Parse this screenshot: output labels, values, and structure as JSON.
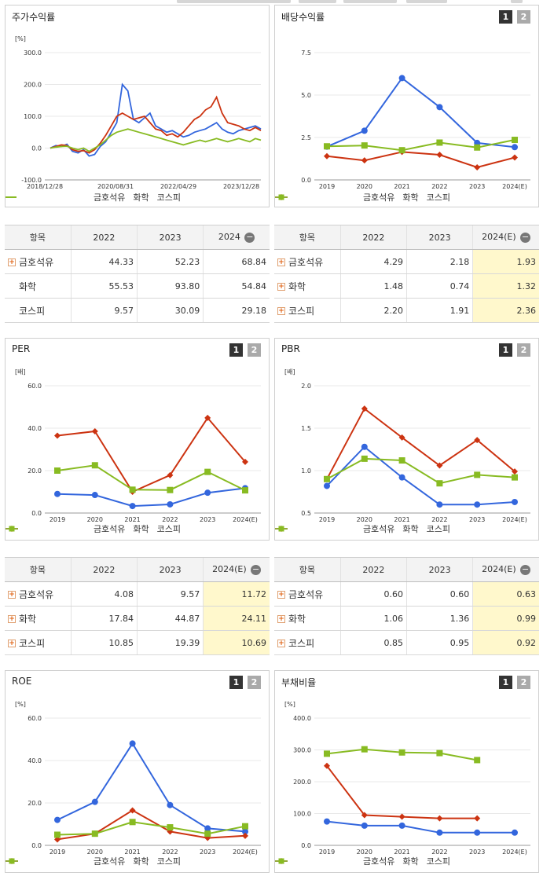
{
  "colors": {
    "s1": "#3366dd",
    "s2": "#cc3311",
    "s3": "#88bb22"
  },
  "series_names": [
    "금호석유",
    "화학",
    "코스피"
  ],
  "table_header": {
    "item": "항목"
  },
  "panels": {
    "stock": {
      "title": "주가수익률",
      "unit": "[%]"
    },
    "div": {
      "title": "배당수익률",
      "btn1": "1",
      "btn2": "2"
    },
    "per": {
      "title": "PER",
      "unit": "[배]",
      "btn1": "1",
      "btn2": "2"
    },
    "pbr": {
      "title": "PBR",
      "unit": "[배]",
      "btn1": "1",
      "btn2": "2"
    },
    "roe": {
      "title": "ROE",
      "unit": "[%]",
      "btn1": "1",
      "btn2": "2"
    },
    "debt": {
      "title": "부채비율",
      "unit": "[%]",
      "btn1": "1",
      "btn2": "2"
    }
  },
  "tables": {
    "stock": {
      "cols": [
        "2022",
        "2023",
        "2024"
      ],
      "rows": [
        {
          "name": "금호석유",
          "plus": true,
          "vals": [
            "44.33",
            "52.23",
            "68.84"
          ]
        },
        {
          "name": "화학",
          "plus": false,
          "vals": [
            "55.53",
            "93.80",
            "54.84"
          ]
        },
        {
          "name": "코스피",
          "plus": false,
          "vals": [
            "9.57",
            "30.09",
            "29.18"
          ]
        }
      ]
    },
    "div": {
      "cols": [
        "2022",
        "2023",
        "2024(E)"
      ],
      "rows": [
        {
          "name": "금호석유",
          "plus": true,
          "vals": [
            "4.29",
            "2.18",
            "1.93"
          ]
        },
        {
          "name": "화학",
          "plus": true,
          "vals": [
            "1.48",
            "0.74",
            "1.32"
          ]
        },
        {
          "name": "코스피",
          "plus": true,
          "vals": [
            "2.20",
            "1.91",
            "2.36"
          ]
        }
      ]
    },
    "per": {
      "cols": [
        "2022",
        "2023",
        "2024(E)"
      ],
      "rows": [
        {
          "name": "금호석유",
          "plus": true,
          "vals": [
            "4.08",
            "9.57",
            "11.72"
          ]
        },
        {
          "name": "화학",
          "plus": true,
          "vals": [
            "17.84",
            "44.87",
            "24.11"
          ]
        },
        {
          "name": "코스피",
          "plus": true,
          "vals": [
            "10.85",
            "19.39",
            "10.69"
          ]
        }
      ]
    },
    "pbr": {
      "cols": [
        "2022",
        "2023",
        "2024(E)"
      ],
      "rows": [
        {
          "name": "금호석유",
          "plus": true,
          "vals": [
            "0.60",
            "0.60",
            "0.63"
          ]
        },
        {
          "name": "화학",
          "plus": true,
          "vals": [
            "1.06",
            "1.36",
            "0.99"
          ]
        },
        {
          "name": "코스피",
          "plus": true,
          "vals": [
            "0.85",
            "0.95",
            "0.92"
          ]
        }
      ]
    }
  },
  "chart_data": [
    {
      "id": "stock",
      "type": "line",
      "ylabel": "[%]",
      "yticks": [
        "300.0",
        "200.0",
        "100.0",
        "0.0",
        "-100.0"
      ],
      "ylim": [
        -100,
        300
      ],
      "xticks": [
        "2018/12/28",
        "2020/08/31",
        "2022/04/29",
        "2023/12/28"
      ],
      "series": [
        {
          "name": "금호석유",
          "values": [
            0,
            8,
            5,
            12,
            -10,
            -15,
            -5,
            -25,
            -20,
            5,
            20,
            50,
            80,
            200,
            180,
            90,
            80,
            95,
            110,
            70,
            60,
            50,
            55,
            45,
            35,
            40,
            50,
            55,
            60,
            70,
            80,
            60,
            50,
            45,
            55,
            60,
            65,
            70,
            60
          ]
        },
        {
          "name": "화학",
          "values": [
            0,
            5,
            10,
            8,
            -5,
            -10,
            -8,
            -15,
            -5,
            15,
            40,
            70,
            100,
            110,
            100,
            90,
            95,
            100,
            80,
            60,
            55,
            40,
            45,
            35,
            50,
            70,
            90,
            100,
            120,
            130,
            160,
            110,
            80,
            75,
            70,
            60,
            55,
            65,
            55
          ]
        },
        {
          "name": "코스피",
          "values": [
            0,
            3,
            5,
            6,
            0,
            -5,
            0,
            -10,
            0,
            10,
            25,
            40,
            50,
            55,
            60,
            55,
            50,
            45,
            40,
            35,
            30,
            25,
            20,
            15,
            10,
            15,
            20,
            25,
            20,
            25,
            30,
            25,
            20,
            25,
            30,
            25,
            20,
            30,
            25
          ]
        }
      ]
    },
    {
      "id": "div",
      "type": "line",
      "ylim": [
        0,
        7.5
      ],
      "yticks": [
        "7.5",
        "5.0",
        "2.5",
        "0.0"
      ],
      "categories": [
        "2019",
        "2020",
        "2021",
        "2022",
        "2023",
        "2024(E)"
      ],
      "series": [
        {
          "name": "금호석유",
          "values": [
            1.96,
            2.9,
            6.0,
            4.29,
            2.18,
            1.93
          ]
        },
        {
          "name": "화학",
          "values": [
            1.4,
            1.15,
            1.65,
            1.48,
            0.74,
            1.32
          ]
        },
        {
          "name": "코스피",
          "values": [
            1.98,
            2.03,
            1.75,
            2.2,
            1.91,
            2.36
          ]
        }
      ]
    },
    {
      "id": "per",
      "type": "line",
      "ylim": [
        0,
        60
      ],
      "ylabel": "[배]",
      "yticks": [
        "60.0",
        "40.0",
        "20.0",
        "0.0"
      ],
      "categories": [
        "2019",
        "2020",
        "2021",
        "2022",
        "2023",
        "2024(E)"
      ],
      "series": [
        {
          "name": "금호석유",
          "values": [
            9.0,
            8.5,
            3.3,
            4.08,
            9.57,
            11.72
          ]
        },
        {
          "name": "화학",
          "values": [
            36.5,
            38.5,
            10.0,
            17.84,
            44.87,
            24.11
          ]
        },
        {
          "name": "코스피",
          "values": [
            20.0,
            22.5,
            11.0,
            10.85,
            19.39,
            10.69
          ]
        }
      ]
    },
    {
      "id": "pbr",
      "type": "line",
      "ylim": [
        0.5,
        2.0
      ],
      "ylabel": "[배]",
      "yticks": [
        "2.0",
        "1.5",
        "1.0",
        "0.5"
      ],
      "categories": [
        "2019",
        "2020",
        "2021",
        "2022",
        "2023",
        "2024(E)"
      ],
      "series": [
        {
          "name": "금호석유",
          "values": [
            0.82,
            1.28,
            0.92,
            0.6,
            0.6,
            0.63
          ]
        },
        {
          "name": "화학",
          "values": [
            0.9,
            1.73,
            1.39,
            1.06,
            1.36,
            0.99
          ]
        },
        {
          "name": "코스피",
          "values": [
            0.9,
            1.14,
            1.12,
            0.85,
            0.95,
            0.92
          ]
        }
      ]
    },
    {
      "id": "roe",
      "type": "line",
      "ylim": [
        0,
        60
      ],
      "ylabel": "[%]",
      "yticks": [
        "60.0",
        "40.0",
        "20.0",
        "0.0"
      ],
      "categories": [
        "2019",
        "2020",
        "2021",
        "2022",
        "2023",
        "2024(E)"
      ],
      "series": [
        {
          "name": "금호석유",
          "values": [
            12.0,
            20.5,
            48.0,
            19.0,
            8.0,
            6.5
          ]
        },
        {
          "name": "화학",
          "values": [
            2.8,
            5.5,
            16.5,
            6.5,
            3.5,
            4.5
          ]
        },
        {
          "name": "코스피",
          "values": [
            5.0,
            5.5,
            11.0,
            8.5,
            5.5,
            9.0
          ]
        }
      ]
    },
    {
      "id": "debt",
      "type": "line",
      "ylim": [
        0,
        400
      ],
      "ylabel": "[%]",
      "yticks": [
        "400.0",
        "300.0",
        "200.0",
        "100.0",
        "0.0"
      ],
      "categories": [
        "2019",
        "2020",
        "2021",
        "2022",
        "2023",
        "2024(E)"
      ],
      "series": [
        {
          "name": "금호석유",
          "values": [
            75,
            62,
            62,
            40,
            40,
            40
          ]
        },
        {
          "name": "화학",
          "values": [
            250,
            95,
            90,
            85,
            85,
            null
          ]
        },
        {
          "name": "코스피",
          "values": [
            288,
            302,
            292,
            290,
            268,
            null
          ]
        }
      ]
    }
  ]
}
